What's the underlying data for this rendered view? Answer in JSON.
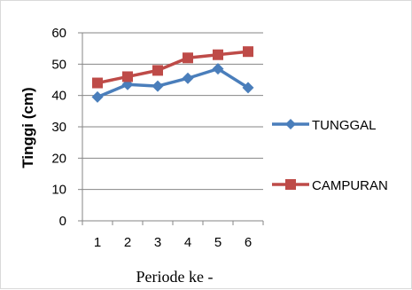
{
  "chart_data": {
    "type": "line",
    "title": "",
    "xlabel": "Periode ke -",
    "ylabel": "Tinggi (cm)",
    "categories": [
      "1",
      "2",
      "3",
      "4",
      "5",
      "6"
    ],
    "ylim": [
      0,
      60
    ],
    "yticks": [
      "0",
      "10",
      "20",
      "30",
      "40",
      "50",
      "60"
    ],
    "grid": "horizontal",
    "legend_position": "right",
    "series": [
      {
        "name": "TUNGGAL",
        "values": [
          39.5,
          43.5,
          43,
          45.5,
          48.5,
          42.5
        ],
        "color": "#4a7ebb",
        "marker": "diamond"
      },
      {
        "name": "CAMPURAN",
        "values": [
          44,
          46,
          48,
          52,
          53,
          54
        ],
        "color": "#be4b48",
        "marker": "square"
      }
    ]
  }
}
